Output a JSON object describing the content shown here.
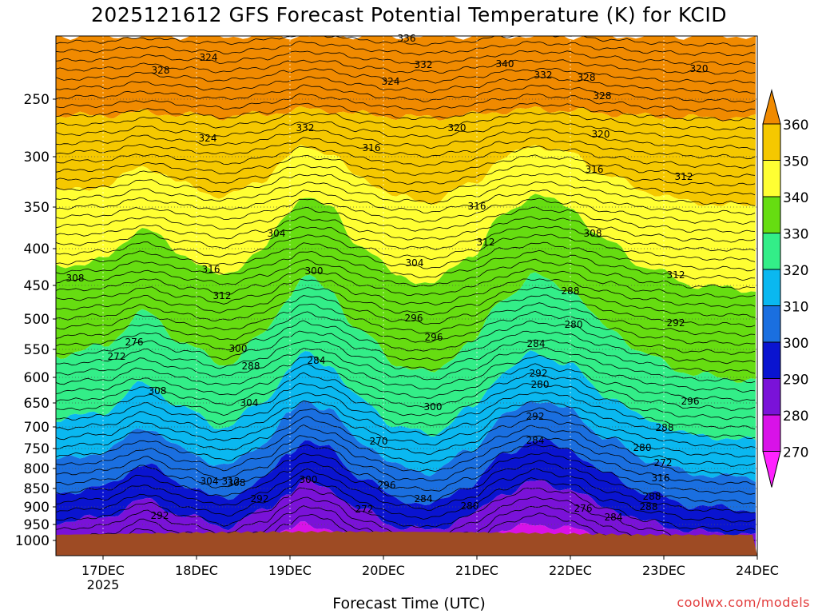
{
  "chart_data": {
    "type": "heatmap",
    "title": "2025121612 GFS Forecast Potential Temperature (K) for KCID",
    "xlabel": "Forecast Time (UTC)",
    "ylabel": "",
    "credit": "coolwx.com/models",
    "y_axis": {
      "scale": "pressure (hPa, inverted)",
      "ticks": [
        "250",
        "300",
        "350",
        "400",
        "450",
        "500",
        "550",
        "600",
        "650",
        "700",
        "750",
        "800",
        "850",
        "900",
        "950",
        "1000"
      ]
    },
    "x_axis": {
      "ticks": [
        "17DEC",
        "18DEC",
        "19DEC",
        "20DEC",
        "21DEC",
        "22DEC",
        "23DEC",
        "24DEC"
      ],
      "year_label": "2025",
      "range": [
        "2025-12-16T12Z",
        "2025-12-24T00Z"
      ]
    },
    "colorbar": {
      "labels": [
        "360",
        "350",
        "340",
        "330",
        "320",
        "310",
        "300",
        "290",
        "280",
        "270"
      ],
      "colors": [
        "#f08a00",
        "#f5c800",
        "#ffff33",
        "#66dd11",
        "#33ee88",
        "#0ab8f0",
        "#1a6fe0",
        "#0a14d0",
        "#7a12d8",
        "#d812e8",
        "#ff22ff"
      ]
    },
    "contour_labels": [
      "336",
      "324",
      "328",
      "332",
      "340",
      "332",
      "328",
      "324",
      "328",
      "320",
      "332",
      "324",
      "320",
      "316",
      "320",
      "316",
      "312",
      "316",
      "312",
      "308",
      "304",
      "308",
      "316",
      "312",
      "312",
      "304",
      "300",
      "296",
      "292",
      "288",
      "284",
      "280",
      "276",
      "272",
      "300",
      "296",
      "292",
      "288",
      "284",
      "280",
      "308",
      "304",
      "300",
      "296",
      "292",
      "288",
      "284",
      "280",
      "272",
      "270",
      "316",
      "312",
      "308",
      "304",
      "300",
      "296",
      "292",
      "288",
      "284",
      "280",
      "276",
      "272",
      "284",
      "288",
      "292"
    ],
    "surface_color": "#9e4b24"
  }
}
